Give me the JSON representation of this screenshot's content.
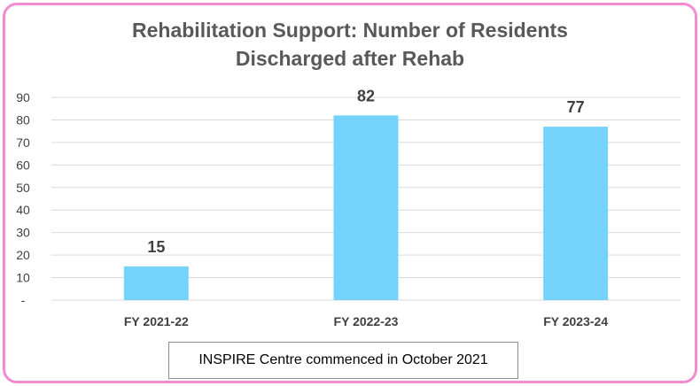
{
  "chart_data": {
    "type": "bar",
    "title_lines": [
      "Rehabilitation Support: Number of Residents",
      "Discharged after Rehab"
    ],
    "categories": [
      "FY 2021-22",
      "FY 2022-23",
      "FY 2023-24"
    ],
    "values": [
      15,
      82,
      77
    ],
    "data_labels": [
      "15",
      "82",
      "77"
    ],
    "ylim": [
      0,
      90
    ],
    "yticks": [
      0,
      10,
      20,
      30,
      40,
      50,
      60,
      70,
      80,
      90
    ],
    "ytick_labels": [
      "-",
      "10",
      "20",
      "30",
      "40",
      "50",
      "60",
      "70",
      "80",
      "90"
    ],
    "grid": true,
    "bar_color": "#75d3fb",
    "label_color": "#404040"
  },
  "note": "INSPIRE Centre commenced in October 2021",
  "frame_color": "#f48bd0"
}
